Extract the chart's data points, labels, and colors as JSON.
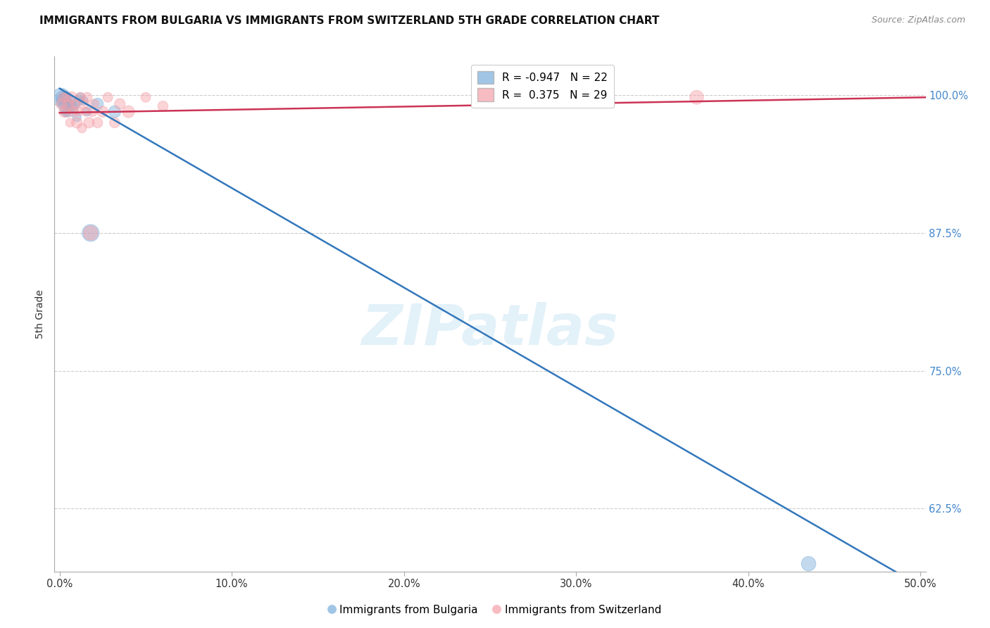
{
  "title": "IMMIGRANTS FROM BULGARIA VS IMMIGRANTS FROM SWITZERLAND 5TH GRADE CORRELATION CHART",
  "source": "Source: ZipAtlas.com",
  "ylabel": "5th Grade",
  "xlabel_ticks": [
    0.0,
    0.1,
    0.2,
    0.3,
    0.4,
    0.5
  ],
  "xlabel_labels": [
    "0.0%",
    "10.0%",
    "20.0%",
    "30.0%",
    "40.0%",
    "50.0%"
  ],
  "ylabel_ticks": [
    0.625,
    0.75,
    0.875,
    1.0
  ],
  "ylabel_labels": [
    "62.5%",
    "75.0%",
    "87.5%",
    "100.0%"
  ],
  "xlim": [
    -0.003,
    0.503
  ],
  "ylim": [
    0.568,
    1.035
  ],
  "bulgaria_R": -0.947,
  "bulgaria_N": 22,
  "switzerland_R": 0.375,
  "switzerland_N": 29,
  "bulgaria_color": "#7AADDB",
  "switzerland_color": "#F4A0A8",
  "bulgaria_line_color": "#3377BB",
  "switzerland_line_color": "#CC3355",
  "watermark": "ZIPatlas",
  "bulgaria_x": [
    0.0008,
    0.0015,
    0.002,
    0.0025,
    0.003,
    0.0035,
    0.004,
    0.0045,
    0.005,
    0.006,
    0.007,
    0.008,
    0.009,
    0.01,
    0.011,
    0.012,
    0.014,
    0.016,
    0.018,
    0.022,
    0.032,
    0.435
  ],
  "bulgaria_y": [
    0.998,
    0.998,
    0.995,
    0.998,
    0.99,
    0.985,
    0.998,
    0.992,
    0.985,
    0.99,
    0.995,
    0.988,
    0.992,
    0.98,
    0.995,
    0.998,
    0.995,
    0.985,
    0.875,
    0.992,
    0.985,
    0.575
  ],
  "bulgaria_sizes": [
    350,
    180,
    200,
    130,
    160,
    100,
    140,
    110,
    120,
    150,
    100,
    90,
    110,
    80,
    100,
    90,
    80,
    80,
    300,
    140,
    150,
    220
  ],
  "switzerland_x": [
    0.001,
    0.002,
    0.003,
    0.004,
    0.005,
    0.006,
    0.007,
    0.008,
    0.009,
    0.01,
    0.011,
    0.012,
    0.013,
    0.014,
    0.015,
    0.016,
    0.017,
    0.018,
    0.019,
    0.02,
    0.022,
    0.025,
    0.028,
    0.032,
    0.035,
    0.04,
    0.05,
    0.06,
    0.37
  ],
  "switzerland_y": [
    0.992,
    0.998,
    0.985,
    0.998,
    0.99,
    0.975,
    0.998,
    0.985,
    0.992,
    0.975,
    0.985,
    0.998,
    0.97,
    0.992,
    0.985,
    0.998,
    0.975,
    0.875,
    0.985,
    0.992,
    0.975,
    0.985,
    0.998,
    0.975,
    0.992,
    0.985,
    0.998,
    0.99,
    0.998
  ],
  "switzerland_sizes": [
    120,
    100,
    140,
    90,
    160,
    80,
    130,
    110,
    90,
    120,
    80,
    100,
    90,
    110,
    80,
    100,
    120,
    220,
    100,
    90,
    110,
    130,
    100,
    110,
    120,
    150,
    100,
    110,
    200
  ],
  "blue_line_x": [
    0.0,
    0.503
  ],
  "blue_line_y": [
    1.006,
    0.552
  ],
  "pink_line_x": [
    0.0,
    0.503
  ],
  "pink_line_y": [
    0.984,
    0.998
  ]
}
